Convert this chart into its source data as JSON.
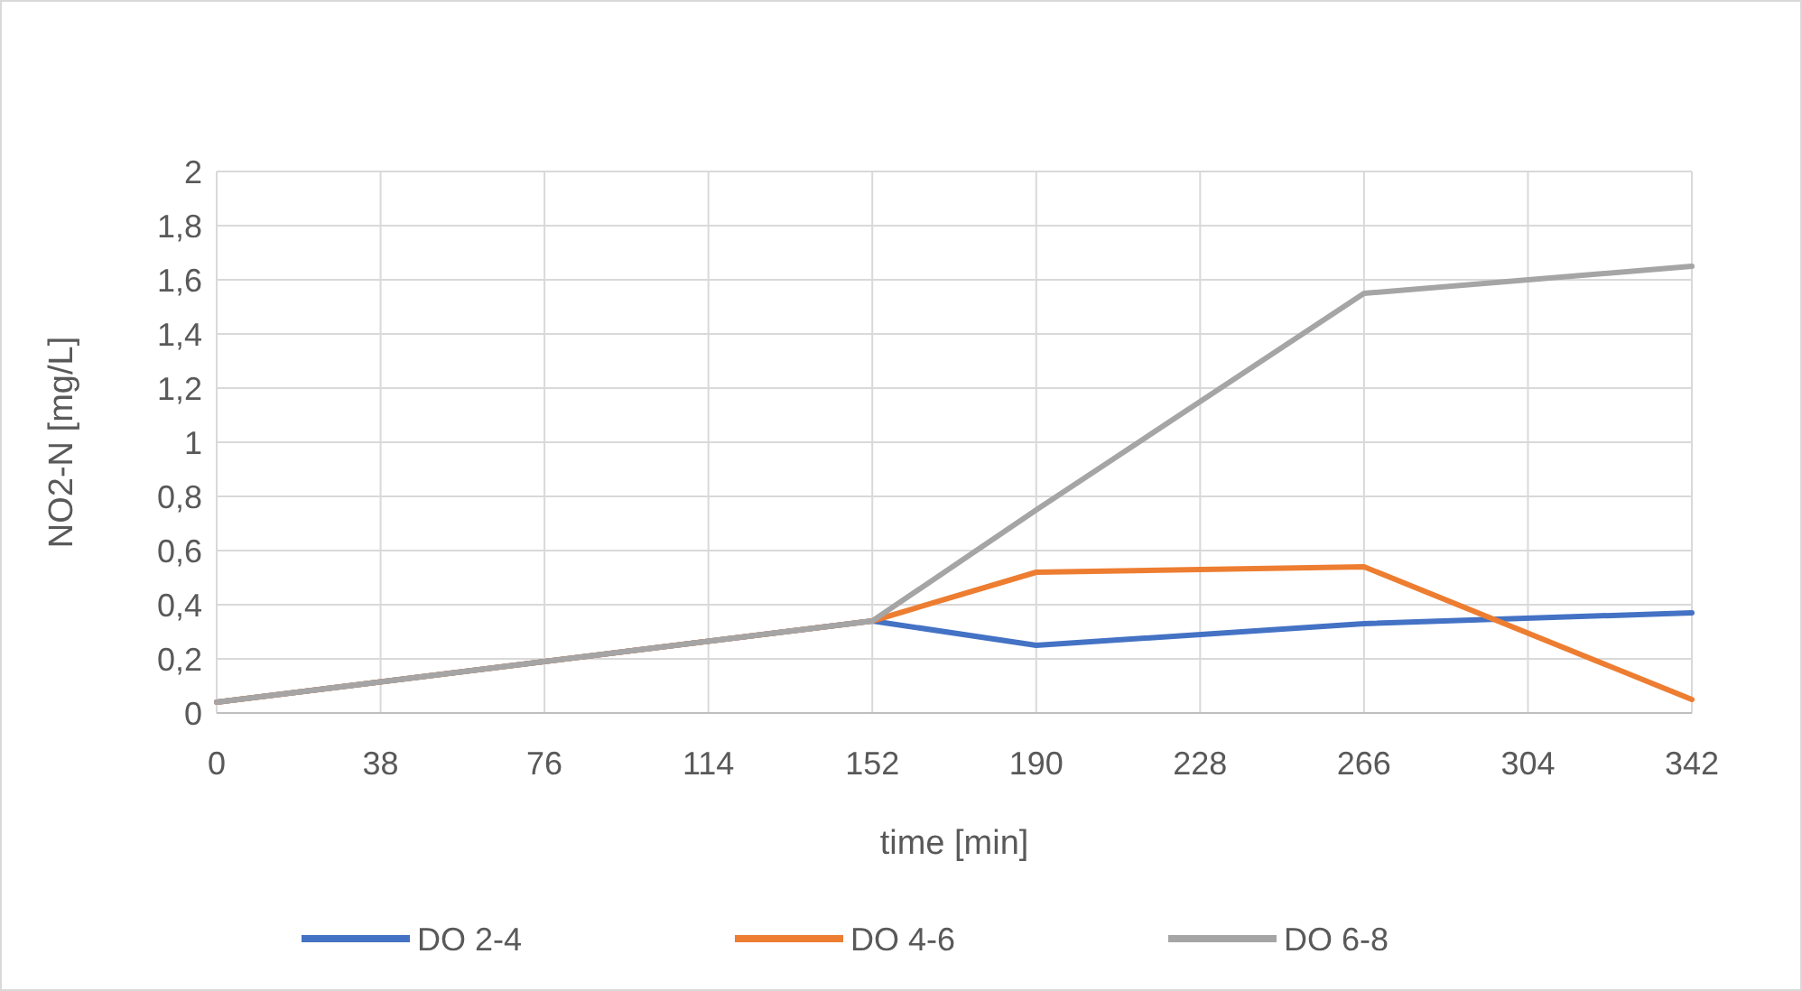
{
  "chart_data": {
    "type": "line",
    "xlabel": "time [min]",
    "ylabel": "NO2-N [mg/L]",
    "xlim": [
      0,
      342
    ],
    "xticks": [
      0,
      38,
      76,
      114,
      152,
      190,
      228,
      266,
      304,
      342
    ],
    "ylim": [
      0,
      2
    ],
    "yticks": [
      0,
      {
        "value": 0.2,
        "label": "0,2"
      },
      {
        "value": 0.4,
        "label": "0,4"
      },
      {
        "value": 0.6,
        "label": "0,6"
      },
      {
        "value": 0.8,
        "label": "0,8"
      },
      1,
      {
        "value": 1.2,
        "label": "1,2"
      },
      {
        "value": 1.4,
        "label": "1,4"
      },
      {
        "value": 1.6,
        "label": "1,6"
      },
      {
        "value": 1.8,
        "label": "1,8"
      },
      2
    ],
    "grid": true,
    "legend": "bottom",
    "marker": "none",
    "line_style": "solid",
    "series": [
      {
        "name": "DO 2-4",
        "color": "#4472c4",
        "x": [
          0,
          152,
          190,
          266,
          342
        ],
        "values": [
          0.04,
          0.34,
          0.25,
          0.33,
          0.37
        ]
      },
      {
        "name": "DO 4-6",
        "color": "#ed7d31",
        "x": [
          0,
          152,
          190,
          266,
          342
        ],
        "values": [
          0.04,
          0.34,
          0.52,
          0.54,
          0.05
        ]
      },
      {
        "name": "DO 6-8",
        "color": "#a5a5a5",
        "x": [
          0,
          152,
          190,
          266,
          342
        ],
        "values": [
          0.04,
          0.34,
          0.75,
          1.55,
          1.65
        ]
      }
    ]
  }
}
